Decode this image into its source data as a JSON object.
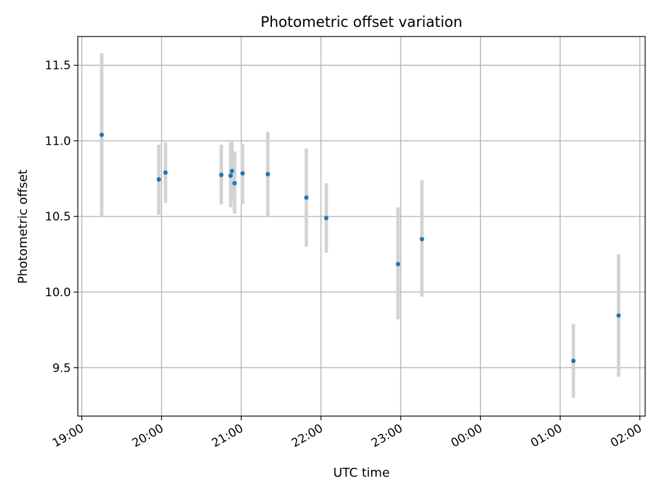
{
  "chart_data": {
    "type": "scatter",
    "title": "Photometric offset variation",
    "xlabel": "UTC time",
    "ylabel": "Photometric offset",
    "x_ticks": [
      "19:00",
      "20:00",
      "21:00",
      "22:00",
      "23:00",
      "00:00",
      "01:00",
      "02:00"
    ],
    "y_ticks": [
      "9.5",
      "10.0",
      "10.5",
      "11.0",
      "11.5"
    ],
    "xlim": [
      "18:57",
      "02:04"
    ],
    "ylim": [
      9.18,
      11.69
    ],
    "grid": true,
    "colors": {
      "point": "#1f77b4",
      "errorbar": "#d3d3d3",
      "grid": "#b0b0b0"
    },
    "points": [
      {
        "x": "19:15",
        "y": 11.04,
        "y_low": 10.5,
        "y_high": 11.58
      },
      {
        "x": "19:58",
        "y": 10.745,
        "y_low": 10.51,
        "y_high": 10.975
      },
      {
        "x": "20:03",
        "y": 10.79,
        "y_low": 10.59,
        "y_high": 10.99
      },
      {
        "x": "20:45",
        "y": 10.775,
        "y_low": 10.58,
        "y_high": 10.975
      },
      {
        "x": "20:52",
        "y": 10.77,
        "y_low": 10.56,
        "y_high": 10.99
      },
      {
        "x": "20:53",
        "y": 10.8,
        "y_low": 10.6,
        "y_high": 11.0
      },
      {
        "x": "20:55",
        "y": 10.72,
        "y_low": 10.52,
        "y_high": 10.93
      },
      {
        "x": "21:01",
        "y": 10.785,
        "y_low": 10.58,
        "y_high": 10.98
      },
      {
        "x": "21:20",
        "y": 10.78,
        "y_low": 10.5,
        "y_high": 11.06
      },
      {
        "x": "21:49",
        "y": 10.625,
        "y_low": 10.3,
        "y_high": 10.95
      },
      {
        "x": "22:04",
        "y": 10.49,
        "y_low": 10.26,
        "y_high": 10.72
      },
      {
        "x": "22:58",
        "y": 10.185,
        "y_low": 9.82,
        "y_high": 10.56
      },
      {
        "x": "23:16",
        "y": 10.35,
        "y_low": 9.97,
        "y_high": 10.74
      },
      {
        "x": "01:10",
        "y": 9.545,
        "y_low": 9.3,
        "y_high": 9.79
      },
      {
        "x": "01:44",
        "y": 9.845,
        "y_low": 9.44,
        "y_high": 10.25
      }
    ]
  }
}
